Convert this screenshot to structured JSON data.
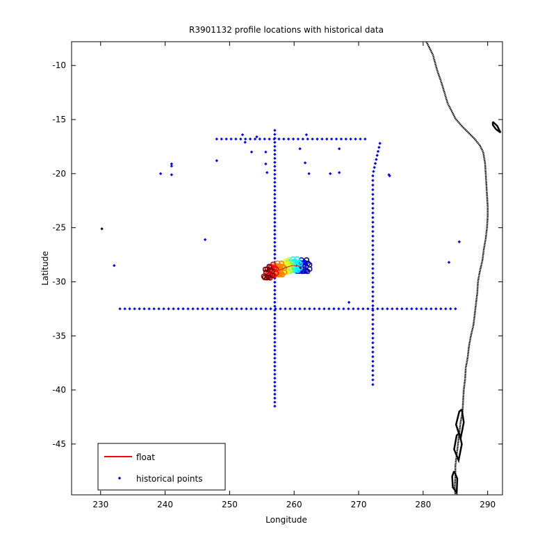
{
  "chart_data": {
    "type": "scatter",
    "title": "R3901132 profile locations with historical data",
    "xlabel": "Longitude",
    "ylabel": "Latitude",
    "xlim": [
      225.5,
      292.3
    ],
    "ylim": [
      -49.7,
      -7.8
    ],
    "xticks": [
      230,
      240,
      250,
      260,
      270,
      280,
      290
    ],
    "yticks": [
      -45,
      -40,
      -35,
      -30,
      -25,
      -20,
      -15,
      -10
    ],
    "grid": false,
    "legend": {
      "placement": "bottom-left",
      "entries": [
        {
          "label": "float",
          "color": "#ff0000",
          "marker": "line"
        },
        {
          "label": "historical points",
          "color": "#0000ff",
          "marker": "dot"
        }
      ]
    },
    "colors": {
      "historical": "#0000ff",
      "coastline": "#000000",
      "float_track": [
        "#00008f",
        "#0000ff",
        "#00ffff",
        "#80ff80",
        "#ffff00",
        "#ff8000",
        "#ff0000",
        "#800000"
      ]
    },
    "series": [
      {
        "name": "historical points",
        "lines": [
          {
            "from": [
              233,
              -32.5
            ],
            "to": [
              285,
              -32.5
            ],
            "n": 70
          },
          {
            "from": [
              248,
              -16.8
            ],
            "to": [
              271,
              -16.8
            ],
            "n": 32
          },
          {
            "from": [
              257,
              -16.0
            ],
            "to": [
              257,
              -41.5
            ],
            "n": 70
          },
          {
            "from": [
              272.2,
              -20.2
            ],
            "to": [
              272.2,
              -39.5
            ],
            "n": 46
          },
          {
            "from": [
              272.3,
              -19.8
            ],
            "to": [
              273.3,
              -17.2
            ],
            "n": 8
          }
        ],
        "points": [
          [
            230.2,
            -25.1
          ],
          [
            232.1,
            -28.5
          ],
          [
            239.3,
            -20.0
          ],
          [
            241.0,
            -19.1
          ],
          [
            241.0,
            -20.1
          ],
          [
            241.0,
            -19.3
          ],
          [
            246.2,
            -26.1
          ],
          [
            248.0,
            -18.8
          ],
          [
            252.0,
            -16.4
          ],
          [
            252.4,
            -17.1
          ],
          [
            253.4,
            -18.0
          ],
          [
            254.2,
            -16.6
          ],
          [
            255.6,
            -18.0
          ],
          [
            255.6,
            -19.1
          ],
          [
            255.8,
            -19.9
          ],
          [
            260.9,
            -17.7
          ],
          [
            261.9,
            -16.4
          ],
          [
            261.7,
            -19.0
          ],
          [
            262.3,
            -20.0
          ],
          [
            265.6,
            -20.0
          ],
          [
            267.0,
            -17.7
          ],
          [
            267.0,
            -19.9
          ],
          [
            268.5,
            -31.9
          ],
          [
            274.7,
            -20.1
          ],
          [
            274.8,
            -20.2
          ],
          [
            284.0,
            -28.2
          ],
          [
            285.6,
            -26.3
          ]
        ]
      },
      {
        "name": "float",
        "lon_range": [
          255.2,
          263.0
        ],
        "lat_range": [
          -30.2,
          -27.7
        ],
        "cluster_centers": [
          [
            256.0,
            -29.2
          ],
          [
            256.6,
            -29.0
          ],
          [
            257.3,
            -28.9
          ],
          [
            257.9,
            -28.9
          ],
          [
            258.6,
            -28.7
          ],
          [
            259.1,
            -28.6
          ],
          [
            259.7,
            -28.5
          ],
          [
            260.3,
            -28.5
          ],
          [
            261.0,
            -28.6
          ],
          [
            261.8,
            -28.6
          ]
        ]
      }
    ],
    "coastline": {
      "color": "#000000",
      "points": [
        [
          280.5,
          -7.8
        ],
        [
          281.5,
          -9.0
        ],
        [
          282.2,
          -10.5
        ],
        [
          282.8,
          -11.5
        ],
        [
          283.3,
          -12.5
        ],
        [
          283.8,
          -13.5
        ],
        [
          284.5,
          -14.3
        ],
        [
          285.0,
          -14.9
        ],
        [
          286.0,
          -15.6
        ],
        [
          287.0,
          -16.2
        ],
        [
          288.0,
          -16.8
        ],
        [
          288.8,
          -17.4
        ],
        [
          289.3,
          -18.0
        ],
        [
          289.6,
          -19.0
        ],
        [
          289.7,
          -20.0
        ],
        [
          289.8,
          -21.0
        ],
        [
          289.9,
          -22.0
        ],
        [
          290.0,
          -23.0
        ],
        [
          290.0,
          -24.0
        ],
        [
          289.9,
          -25.0
        ],
        [
          289.7,
          -26.0
        ],
        [
          289.4,
          -27.0
        ],
        [
          289.2,
          -28.0
        ],
        [
          288.8,
          -29.0
        ],
        [
          288.5,
          -30.0
        ],
        [
          288.4,
          -31.0
        ],
        [
          288.2,
          -32.0
        ],
        [
          288.0,
          -33.0
        ],
        [
          287.8,
          -34.0
        ],
        [
          287.4,
          -35.0
        ],
        [
          287.1,
          -36.0
        ],
        [
          286.9,
          -37.0
        ],
        [
          286.6,
          -38.0
        ],
        [
          286.5,
          -39.0
        ],
        [
          286.3,
          -40.0
        ],
        [
          286.2,
          -41.0
        ],
        [
          286.1,
          -42.0
        ],
        [
          285.8,
          -43.0
        ],
        [
          285.6,
          -44.0
        ],
        [
          285.4,
          -45.0
        ],
        [
          285.2,
          -46.0
        ],
        [
          285.0,
          -47.0
        ],
        [
          285.0,
          -48.0
        ],
        [
          284.9,
          -49.0
        ],
        [
          285.0,
          -49.7
        ]
      ],
      "fragments": [
        [
          [
            290.8,
            -15.2
          ],
          [
            291.5,
            -15.6
          ],
          [
            292.0,
            -16.2
          ],
          [
            291.3,
            -15.9
          ],
          [
            290.8,
            -15.5
          ],
          [
            290.8,
            -15.2
          ]
        ],
        [
          [
            286.0,
            -41.8
          ],
          [
            286.3,
            -43.0
          ],
          [
            285.8,
            -44.5
          ],
          [
            285.1,
            -43.2
          ],
          [
            285.6,
            -42.0
          ],
          [
            286.0,
            -41.8
          ]
        ],
        [
          [
            285.6,
            -44.0
          ],
          [
            286.0,
            -45.0
          ],
          [
            285.5,
            -46.5
          ],
          [
            284.8,
            -45.5
          ],
          [
            285.2,
            -44.2
          ],
          [
            285.6,
            -44.0
          ]
        ],
        [
          [
            284.8,
            -47.5
          ],
          [
            285.3,
            -48.2
          ],
          [
            285.2,
            -49.5
          ],
          [
            284.6,
            -49.0
          ],
          [
            284.5,
            -48.0
          ],
          [
            284.8,
            -47.5
          ]
        ]
      ]
    }
  }
}
